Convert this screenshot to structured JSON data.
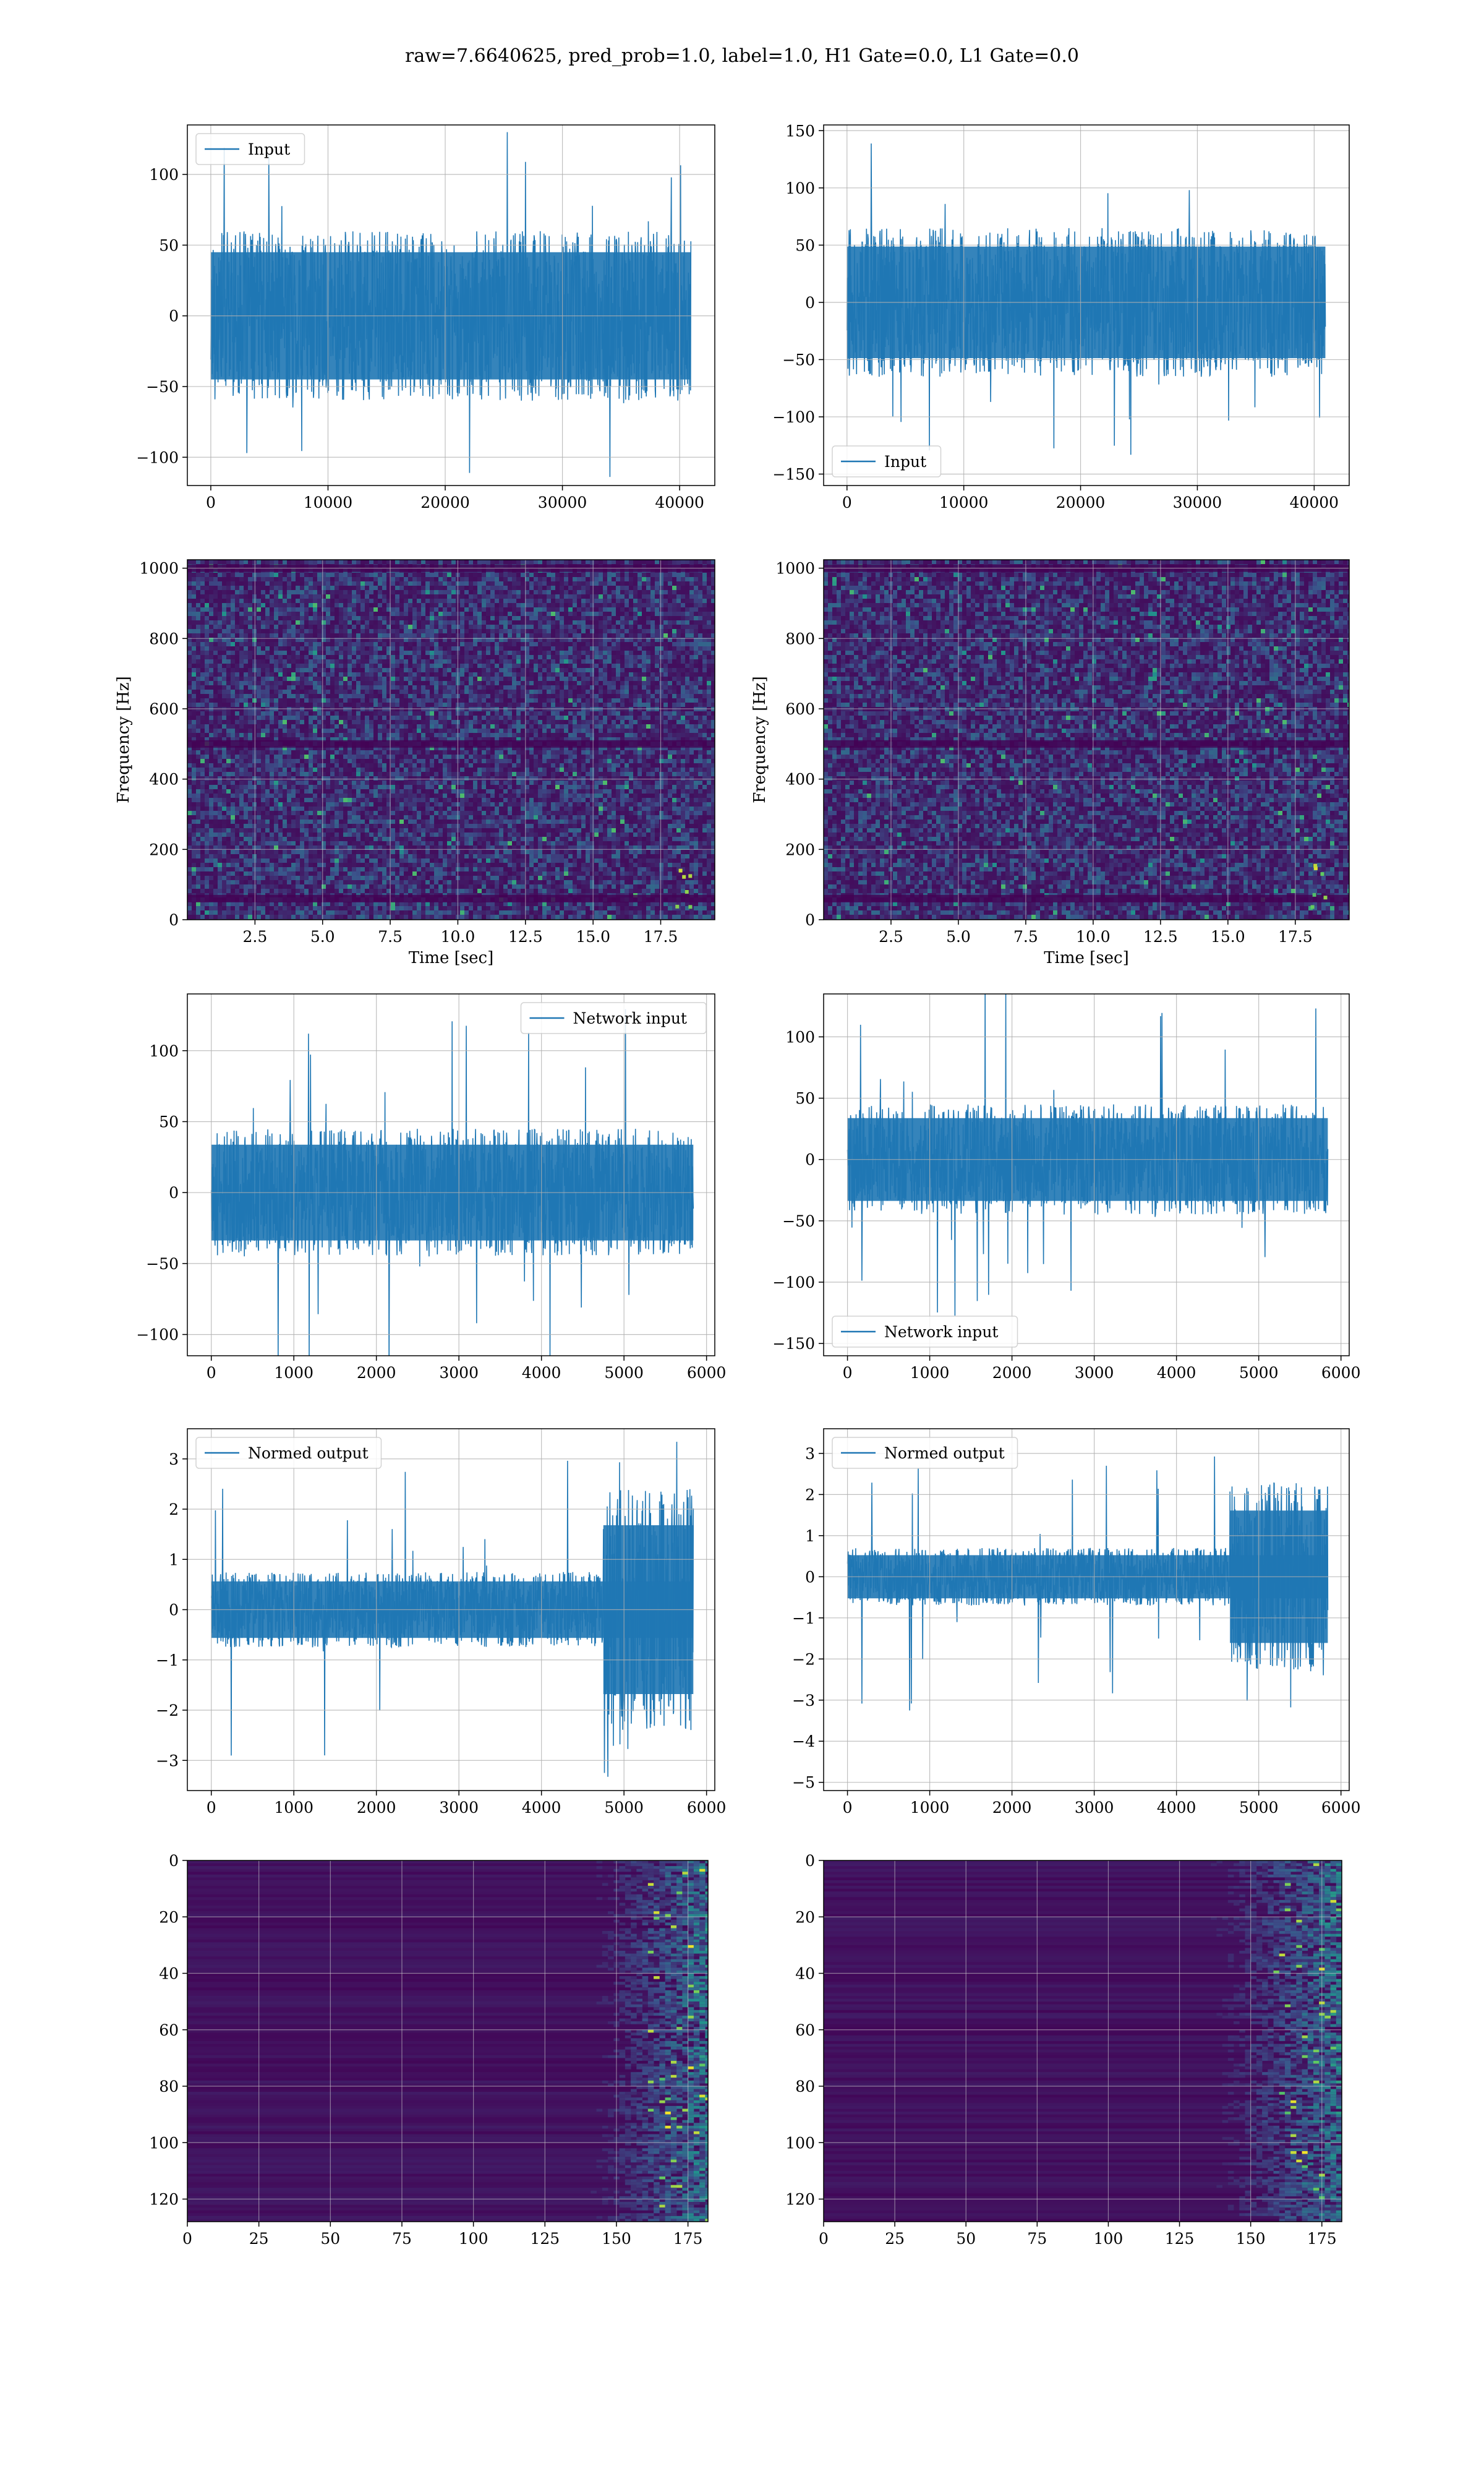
{
  "figure": {
    "suptitle": "raw=7.6640625, pred_prob=1.0, label=1.0, H1 Gate=0.0, L1 Gate=0.0",
    "colors": {
      "line": "#1f77b4",
      "grid": "#b0b0b0",
      "heat_low": "#440154",
      "heat_mid": "#21918c",
      "heat_high": "#fde725"
    }
  },
  "chart_data": [
    {
      "id": "h1_input",
      "type": "line",
      "series": [
        {
          "name": "Input",
          "amplitude": 60,
          "spike_max": 130,
          "shape": "uniform"
        }
      ],
      "xlim": [
        -2000,
        43000
      ],
      "ylim": [
        -120,
        135
      ],
      "xticks": [
        0,
        10000,
        20000,
        30000,
        40000
      ],
      "yticks": [
        -100,
        -50,
        0,
        50,
        100
      ],
      "x_extent": [
        0,
        40960
      ],
      "legend": "upper left",
      "grid": true
    },
    {
      "id": "l1_input",
      "type": "line",
      "series": [
        {
          "name": "Input",
          "amplitude": 65,
          "spike_max": 145,
          "shape": "uniform"
        }
      ],
      "xlim": [
        -2000,
        43000
      ],
      "ylim": [
        -160,
        155
      ],
      "xticks": [
        0,
        10000,
        20000,
        30000,
        40000
      ],
      "yticks": [
        -150,
        -100,
        -50,
        0,
        50,
        100,
        150
      ],
      "x_extent": [
        0,
        40960
      ],
      "legend": "lower left",
      "grid": true
    },
    {
      "id": "h1_spectrogram",
      "type": "heatmap",
      "xlabel": "Time [sec]",
      "ylabel": "Frequency [Hz]",
      "xlim": [
        0,
        19.5
      ],
      "ylim": [
        0,
        1024
      ],
      "xticks": [
        2.5,
        5.0,
        7.5,
        10.0,
        12.5,
        15.0,
        17.5
      ],
      "yticks": [
        0,
        200,
        400,
        600,
        800,
        1000
      ],
      "dark_bands_hz": [
        60,
        500,
        1000
      ],
      "grid": true
    },
    {
      "id": "l1_spectrogram",
      "type": "heatmap",
      "xlabel": "Time [sec]",
      "ylabel": "Frequency [Hz]",
      "xlim": [
        0,
        19.5
      ],
      "ylim": [
        0,
        1024
      ],
      "xticks": [
        2.5,
        5.0,
        7.5,
        10.0,
        12.5,
        15.0,
        17.5
      ],
      "yticks": [
        0,
        200,
        400,
        600,
        800,
        1000
      ],
      "dark_bands_hz": [
        60,
        500,
        1000
      ],
      "grid": true
    },
    {
      "id": "h1_network_input",
      "type": "line",
      "series": [
        {
          "name": "Network input",
          "amplitude": 45,
          "spike_max": 135,
          "shape": "uniform"
        }
      ],
      "xlim": [
        -290,
        6100
      ],
      "ylim": [
        -115,
        140
      ],
      "xticks": [
        0,
        1000,
        2000,
        3000,
        4000,
        5000,
        6000
      ],
      "yticks": [
        -100,
        -50,
        0,
        50,
        100
      ],
      "x_extent": [
        0,
        5840
      ],
      "legend": "upper right",
      "grid": true
    },
    {
      "id": "l1_network_input",
      "type": "line",
      "series": [
        {
          "name": "Network input",
          "amplitude": 45,
          "spike_max": 145,
          "shape": "uniform"
        }
      ],
      "xlim": [
        -290,
        6100
      ],
      "ylim": [
        -160,
        135
      ],
      "xticks": [
        0,
        1000,
        2000,
        3000,
        4000,
        5000,
        6000
      ],
      "yticks": [
        -150,
        -100,
        -50,
        0,
        50,
        100
      ],
      "x_extent": [
        0,
        5840
      ],
      "legend": "lower left",
      "grid": true
    },
    {
      "id": "h1_normed_output",
      "type": "line",
      "series": [
        {
          "name": "Normed output",
          "amplitude": 0.75,
          "spike_max": 3.4,
          "shape": "burst",
          "burst_start": 4750,
          "burst_amplitude": 2.4
        }
      ],
      "xlim": [
        -290,
        6100
      ],
      "ylim": [
        -3.6,
        3.6
      ],
      "xticks": [
        0,
        1000,
        2000,
        3000,
        4000,
        5000,
        6000
      ],
      "yticks": [
        -3,
        -2,
        -1,
        0,
        1,
        2,
        3
      ],
      "x_extent": [
        0,
        5840
      ],
      "legend": "upper left",
      "grid": true
    },
    {
      "id": "l1_normed_output",
      "type": "line",
      "series": [
        {
          "name": "Normed output",
          "amplitude": 0.7,
          "spike_max": 3.3,
          "shape": "burst",
          "burst_start": 4650,
          "burst_amplitude": 2.3
        }
      ],
      "xlim": [
        -290,
        6100
      ],
      "ylim": [
        -5.2,
        3.6
      ],
      "xticks": [
        0,
        1000,
        2000,
        3000,
        4000,
        5000,
        6000
      ],
      "yticks": [
        -5,
        -4,
        -3,
        -2,
        -1,
        0,
        1,
        2,
        3
      ],
      "x_extent": [
        0,
        5840
      ],
      "legend": "upper left",
      "grid": true
    },
    {
      "id": "h1_feature_map",
      "type": "heatmap",
      "xlim": [
        0,
        182
      ],
      "ylim": [
        128,
        0
      ],
      "xticks": [
        0,
        25,
        50,
        75,
        100,
        125,
        150,
        175
      ],
      "yticks": [
        0,
        20,
        40,
        60,
        80,
        100,
        120
      ],
      "activity_start": 125,
      "grid": true
    },
    {
      "id": "l1_feature_map",
      "type": "heatmap",
      "xlim": [
        0,
        182
      ],
      "ylim": [
        128,
        0
      ],
      "xticks": [
        0,
        25,
        50,
        75,
        100,
        125,
        150,
        175
      ],
      "yticks": [
        0,
        20,
        40,
        60,
        80,
        100,
        120
      ],
      "activity_start": 120,
      "grid": true
    }
  ]
}
